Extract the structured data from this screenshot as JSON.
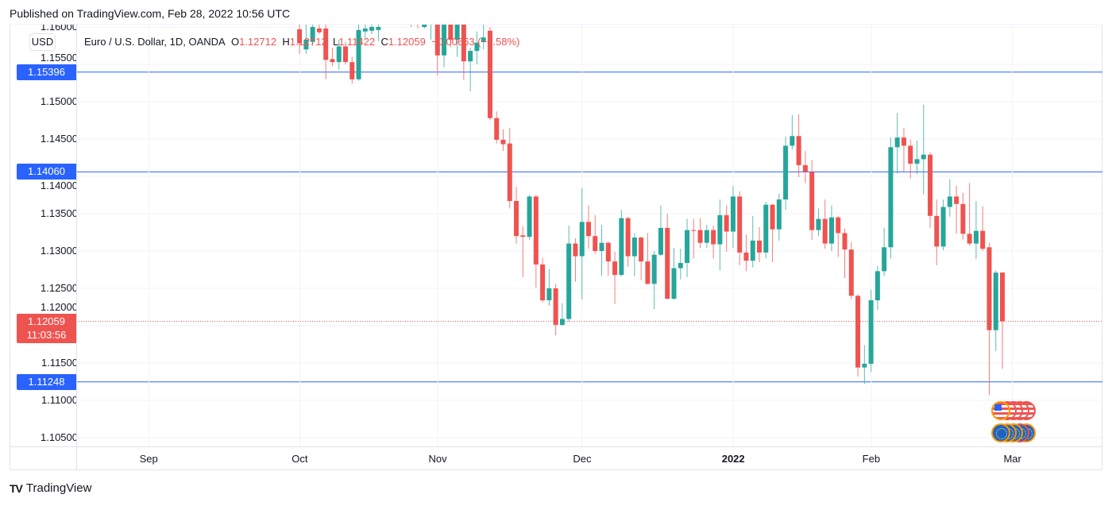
{
  "header": {
    "published": "Published on TradingView.com, Feb 28, 2022 10:56 UTC"
  },
  "currency_button": "USD",
  "legend": {
    "symbol": "Euro / U.S. Dollar, 1D, OANDA",
    "o_label": "O",
    "o": "1.12712",
    "h_label": "H",
    "h": "1.12712",
    "l_label": "L",
    "l": "1.11422",
    "c_label": "C",
    "c": "1.12059",
    "change": "−0.00653 (−0.58%)"
  },
  "levels": [
    {
      "price": 1.15396,
      "label": "1.15396"
    },
    {
      "price": 1.1406,
      "label": "1.14060"
    },
    {
      "price": 1.11248,
      "label": "1.11248"
    }
  ],
  "current_price": {
    "price": 1.12059,
    "label": "1.12059",
    "countdown": "11:03:56"
  },
  "footer": {
    "brand": "TradingView",
    "logo": "TV"
  },
  "colors": {
    "up": "#26a69a",
    "down": "#ef5350",
    "level": "#2962ff",
    "grid": "#f0f3fa"
  },
  "events": {
    "us": "us-flag-event-icon",
    "eu": "eu-flag-event-icon"
  },
  "chart_data": {
    "type": "candlestick",
    "title": "Euro / U.S. Dollar, 1D, OANDA",
    "ylim": [
      1.1,
      1.1604
    ],
    "price_ticks": [
      "1.16000",
      "1.15500",
      "1.15000",
      "1.14500",
      "1.14000",
      "1.13500",
      "1.13000",
      "1.12500",
      "1.12000",
      "1.11500",
      "1.11000",
      "1.10500"
    ],
    "month_labels": [
      {
        "label": "Sep",
        "bar": -22
      },
      {
        "label": "Oct",
        "bar": 1
      },
      {
        "label": "Nov",
        "bar": 22
      },
      {
        "label": "Dec",
        "bar": 44
      },
      {
        "label": "2022",
        "bar": 67,
        "bold": true
      },
      {
        "label": "Feb",
        "bar": 88
      },
      {
        "label": "Mar",
        "bar": 109.5
      }
    ],
    "grid": true,
    "ohlc_fields": [
      "open",
      "high",
      "low",
      "close"
    ],
    "candles": [
      [
        1.1597,
        1.1604,
        1.1564,
        1.1578
      ],
      [
        1.157,
        1.1606,
        1.1564,
        1.1583
      ],
      [
        1.158,
        1.161,
        1.1575,
        1.16
      ],
      [
        1.1598,
        1.1605,
        1.159,
        1.1593
      ],
      [
        1.1598,
        1.1605,
        1.153,
        1.1556
      ],
      [
        1.1557,
        1.1572,
        1.1548,
        1.1553
      ],
      [
        1.1553,
        1.1583,
        1.1543,
        1.1574
      ],
      [
        1.1574,
        1.158,
        1.155,
        1.1553
      ],
      [
        1.1553,
        1.156,
        1.1524,
        1.153
      ],
      [
        1.153,
        1.1604,
        1.1528,
        1.1596
      ],
      [
        1.1594,
        1.1606,
        1.1585,
        1.1598
      ],
      [
        1.1595,
        1.1606,
        1.159,
        1.16
      ],
      [
        1.1596,
        1.1606,
        1.1581,
        1.16
      ],
      [
        1.1612,
        1.1645,
        1.1606,
        1.1638
      ],
      [
        1.1638,
        1.167,
        1.1625,
        1.166
      ],
      [
        1.166,
        1.1668,
        1.1618,
        1.1625
      ],
      [
        1.1625,
        1.166,
        1.1615,
        1.165
      ],
      [
        1.165,
        1.1665,
        1.16,
        1.1612
      ],
      [
        1.1612,
        1.164,
        1.1598,
        1.1605
      ],
      [
        1.16,
        1.165,
        1.1598,
        1.164
      ],
      [
        1.164,
        1.1692,
        1.1583,
        1.168
      ],
      [
        1.168,
        1.169,
        1.1535,
        1.1562
      ],
      [
        1.1562,
        1.1615,
        1.1546,
        1.1605
      ],
      [
        1.161,
        1.162,
        1.1573,
        1.1583
      ],
      [
        1.1583,
        1.1616,
        1.156,
        1.161
      ],
      [
        1.161,
        1.1616,
        1.1529,
        1.1554
      ],
      [
        1.1554,
        1.1572,
        1.1514,
        1.1568
      ],
      [
        1.1568,
        1.1594,
        1.155,
        1.1579
      ],
      [
        1.158,
        1.1604,
        1.157,
        1.1586
      ],
      [
        1.1595,
        1.16,
        1.1475,
        1.1478
      ],
      [
        1.1478,
        1.1487,
        1.1444,
        1.1449
      ],
      [
        1.1449,
        1.1463,
        1.1434,
        1.1443
      ],
      [
        1.1444,
        1.1465,
        1.1357,
        1.1367
      ],
      [
        1.1367,
        1.1386,
        1.131,
        1.132
      ],
      [
        1.1321,
        1.1333,
        1.1265,
        1.1319
      ],
      [
        1.1319,
        1.1375,
        1.1315,
        1.1373
      ],
      [
        1.1373,
        1.1375,
        1.1251,
        1.1282
      ],
      [
        1.1282,
        1.1291,
        1.1231,
        1.1234
      ],
      [
        1.1234,
        1.1276,
        1.1227,
        1.125
      ],
      [
        1.125,
        1.1256,
        1.1187,
        1.1201
      ],
      [
        1.1201,
        1.123,
        1.12,
        1.1209
      ],
      [
        1.1209,
        1.1334,
        1.1205,
        1.131
      ],
      [
        1.131,
        1.1317,
        1.1259,
        1.1293
      ],
      [
        1.1293,
        1.1384,
        1.1235,
        1.1339
      ],
      [
        1.1339,
        1.1361,
        1.1303,
        1.132
      ],
      [
        1.132,
        1.1348,
        1.1296,
        1.13
      ],
      [
        1.13,
        1.1335,
        1.1267,
        1.1311
      ],
      [
        1.1311,
        1.1313,
        1.1267,
        1.1286
      ],
      [
        1.1286,
        1.1299,
        1.1229,
        1.1268
      ],
      [
        1.1268,
        1.1355,
        1.1266,
        1.1344
      ],
      [
        1.1344,
        1.1346,
        1.1279,
        1.1293
      ],
      [
        1.1293,
        1.1324,
        1.1266,
        1.1318
      ],
      [
        1.1318,
        1.1319,
        1.1261,
        1.1286
      ],
      [
        1.1286,
        1.1324,
        1.1255,
        1.1256
      ],
      [
        1.1256,
        1.13,
        1.1222,
        1.1295
      ],
      [
        1.1295,
        1.1361,
        1.1293,
        1.1331
      ],
      [
        1.1331,
        1.135,
        1.1236,
        1.1236
      ],
      [
        1.1236,
        1.1304,
        1.1235,
        1.1277
      ],
      [
        1.1277,
        1.1303,
        1.1262,
        1.1284
      ],
      [
        1.1284,
        1.1343,
        1.1265,
        1.1328
      ],
      [
        1.1328,
        1.1343,
        1.129,
        1.1327
      ],
      [
        1.1328,
        1.1344,
        1.1304,
        1.1311
      ],
      [
        1.1311,
        1.1335,
        1.1304,
        1.1328
      ],
      [
        1.1328,
        1.1334,
        1.129,
        1.1309
      ],
      [
        1.1309,
        1.1369,
        1.1274,
        1.1348
      ],
      [
        1.1348,
        1.1361,
        1.1299,
        1.1326
      ],
      [
        1.1326,
        1.1387,
        1.1304,
        1.1373
      ],
      [
        1.1373,
        1.138,
        1.1281,
        1.1298
      ],
      [
        1.1298,
        1.1322,
        1.1273,
        1.1287
      ],
      [
        1.1287,
        1.1347,
        1.1278,
        1.1314
      ],
      [
        1.1314,
        1.1332,
        1.1285,
        1.1298
      ],
      [
        1.1298,
        1.1366,
        1.129,
        1.1362
      ],
      [
        1.1362,
        1.1363,
        1.1285,
        1.1329
      ],
      [
        1.1329,
        1.1377,
        1.1314,
        1.1369
      ],
      [
        1.1369,
        1.1453,
        1.1355,
        1.1441
      ],
      [
        1.1441,
        1.1482,
        1.1436,
        1.1454
      ],
      [
        1.1454,
        1.1483,
        1.1399,
        1.1415
      ],
      [
        1.1415,
        1.1434,
        1.1391,
        1.1406
      ],
      [
        1.1406,
        1.1422,
        1.1315,
        1.1328
      ],
      [
        1.1328,
        1.1357,
        1.132,
        1.1343
      ],
      [
        1.1343,
        1.1369,
        1.1303,
        1.131
      ],
      [
        1.131,
        1.1361,
        1.13,
        1.1345
      ],
      [
        1.1345,
        1.1347,
        1.1292,
        1.1324
      ],
      [
        1.1324,
        1.133,
        1.1264,
        1.1302
      ],
      [
        1.1302,
        1.1312,
        1.1235,
        1.124
      ],
      [
        1.124,
        1.1242,
        1.1132,
        1.1144
      ],
      [
        1.1144,
        1.1174,
        1.1122,
        1.1149
      ],
      [
        1.1149,
        1.1248,
        1.1138,
        1.1234
      ],
      [
        1.1234,
        1.128,
        1.1221,
        1.1273
      ],
      [
        1.1273,
        1.1331,
        1.1267,
        1.1305
      ],
      [
        1.1305,
        1.1452,
        1.129,
        1.1439
      ],
      [
        1.1439,
        1.1485,
        1.1404,
        1.1452
      ],
      [
        1.1452,
        1.1465,
        1.1406,
        1.1441
      ],
      [
        1.1441,
        1.1449,
        1.1397,
        1.1417
      ],
      [
        1.1417,
        1.1448,
        1.1403,
        1.1423
      ],
      [
        1.1423,
        1.1496,
        1.1376,
        1.1429
      ],
      [
        1.1429,
        1.1432,
        1.1331,
        1.1347
      ],
      [
        1.1347,
        1.1369,
        1.1281,
        1.1306
      ],
      [
        1.1306,
        1.1369,
        1.1301,
        1.1359
      ],
      [
        1.1359,
        1.1396,
        1.1346,
        1.1373
      ],
      [
        1.1373,
        1.1387,
        1.1323,
        1.1363
      ],
      [
        1.1363,
        1.1378,
        1.1315,
        1.1323
      ],
      [
        1.1323,
        1.1391,
        1.1307,
        1.131
      ],
      [
        1.131,
        1.1367,
        1.1289,
        1.1327
      ],
      [
        1.1327,
        1.136,
        1.13,
        1.1303
      ],
      [
        1.1305,
        1.1311,
        1.1107,
        1.1194
      ],
      [
        1.1194,
        1.1274,
        1.1166,
        1.1271
      ],
      [
        1.12712,
        1.12712,
        1.11422,
        1.12059
      ]
    ]
  }
}
